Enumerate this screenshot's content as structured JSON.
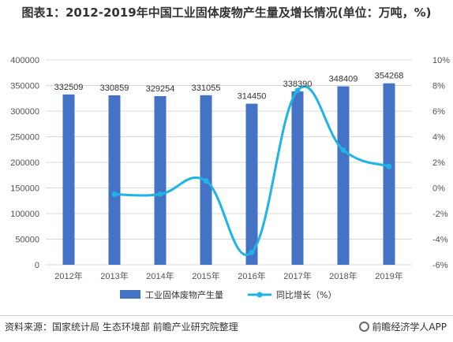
{
  "title": "图表1：2012-2019年中国工业固体废物产生量及增长情况(单位：万吨，%)",
  "source": "资料来源：国家统计局 生态环境部 前瞻产业研究院整理",
  "brand": "前瞻经济学人APP",
  "colors": {
    "bar": "#4472C4",
    "line": "#1FB3E6",
    "grid": "#D9D9D9"
  },
  "chart_data": {
    "type": "bar+line",
    "categories": [
      "2012年",
      "2013年",
      "2014年",
      "2015年",
      "2016年",
      "2017年",
      "2018年",
      "2019年"
    ],
    "series": [
      {
        "name": "工业固体废物产生量",
        "type": "bar",
        "axis": "left",
        "values": [
          332509,
          330859,
          329254,
          331055,
          314450,
          338390,
          348409,
          354268
        ]
      },
      {
        "name": "同比增长（%）",
        "type": "line",
        "axis": "right",
        "values": [
          null,
          -0.5,
          -0.49,
          0.55,
          -5.02,
          7.61,
          2.96,
          1.68
        ]
      }
    ],
    "left_axis": {
      "ylim": [
        0,
        400000
      ],
      "ticks": [
        "0",
        "50000",
        "100000",
        "150000",
        "200000",
        "250000",
        "300000",
        "350000",
        "400000"
      ]
    },
    "right_axis": {
      "ylim": [
        -6,
        10
      ],
      "ticks": [
        "-6%",
        "-4%",
        "-2%",
        "0%",
        "2%",
        "4%",
        "6%",
        "8%",
        "10%"
      ]
    },
    "data_labels": [
      "332509",
      "330859",
      "329254",
      "331055",
      "314450",
      "338390",
      "348409",
      "354268"
    ],
    "legend_position": "bottom",
    "grid": true
  }
}
